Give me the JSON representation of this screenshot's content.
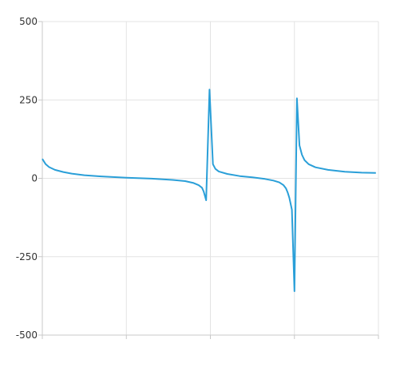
{
  "chart_data": {
    "type": "line",
    "title": "",
    "xlabel": "",
    "ylabel": "",
    "xlim": [
      0,
      4
    ],
    "ylim": [
      -500,
      500
    ],
    "yticks": [
      500,
      250,
      0,
      -250,
      -500
    ],
    "ytick_labels": [
      "500",
      "250",
      "0",
      "-250",
      "-500"
    ],
    "xticks": [
      0,
      1,
      2,
      3,
      4
    ],
    "grid": true,
    "line_color": "#2a9fd8",
    "grid_color": "#e3e3e3",
    "axis_color": "#c8c8c8",
    "series": [
      {
        "values": [
          [
            0.0,
            62
          ],
          [
            0.04,
            45
          ],
          [
            0.08,
            36
          ],
          [
            0.15,
            27
          ],
          [
            0.25,
            20
          ],
          [
            0.35,
            15
          ],
          [
            0.5,
            10
          ],
          [
            0.7,
            6
          ],
          [
            1.0,
            2
          ],
          [
            1.3,
            -1
          ],
          [
            1.55,
            -5
          ],
          [
            1.7,
            -9
          ],
          [
            1.8,
            -15
          ],
          [
            1.86,
            -22
          ],
          [
            1.9,
            -30
          ],
          [
            1.92,
            -42
          ],
          [
            1.95,
            -70
          ],
          [
            1.99,
            283
          ],
          [
            2.03,
            45
          ],
          [
            2.06,
            30
          ],
          [
            2.1,
            22
          ],
          [
            2.2,
            14
          ],
          [
            2.35,
            7
          ],
          [
            2.5,
            3
          ],
          [
            2.65,
            -2
          ],
          [
            2.75,
            -7
          ],
          [
            2.82,
            -13
          ],
          [
            2.87,
            -22
          ],
          [
            2.9,
            -32
          ],
          [
            2.92,
            -45
          ],
          [
            2.94,
            -62
          ],
          [
            2.97,
            -100
          ],
          [
            3.0,
            -360
          ],
          [
            3.03,
            255
          ],
          [
            3.06,
            105
          ],
          [
            3.09,
            75
          ],
          [
            3.12,
            58
          ],
          [
            3.17,
            45
          ],
          [
            3.25,
            35
          ],
          [
            3.4,
            27
          ],
          [
            3.6,
            21
          ],
          [
            3.8,
            18
          ],
          [
            3.97,
            17
          ]
        ]
      }
    ]
  }
}
